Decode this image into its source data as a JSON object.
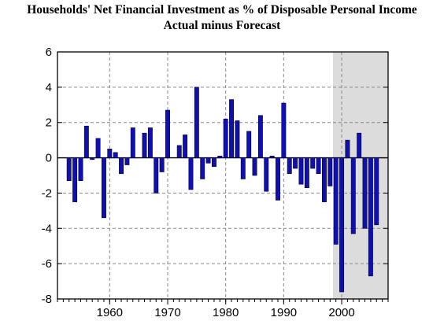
{
  "chart_data": {
    "type": "bar",
    "title": "Households' Net Financial Investment as % of Disposable Personal Income",
    "subtitle": "Actual minus Forecast",
    "xlabel": "",
    "ylabel": "",
    "xlim": [
      1951,
      2008
    ],
    "ylim": [
      -8,
      6
    ],
    "yticks": [
      -8,
      -6,
      -4,
      -2,
      0,
      2,
      4,
      6
    ],
    "xticks": [
      1960,
      1970,
      1980,
      1990,
      2000
    ],
    "grid": true,
    "legend": "none",
    "shaded_region": [
      1998.5,
      2008
    ],
    "colors": {
      "bar_fill": "#1010b0",
      "bar_edge": "#000033",
      "shade": "#dcdcdc",
      "grid": "#888888"
    },
    "x": [
      1953,
      1954,
      1955,
      1956,
      1957,
      1958,
      1959,
      1960,
      1961,
      1962,
      1963,
      1964,
      1965,
      1966,
      1967,
      1968,
      1969,
      1970,
      1971,
      1972,
      1973,
      1974,
      1975,
      1976,
      1977,
      1978,
      1979,
      1980,
      1981,
      1982,
      1983,
      1984,
      1985,
      1986,
      1987,
      1988,
      1989,
      1990,
      1991,
      1992,
      1993,
      1994,
      1995,
      1996,
      1997,
      1998,
      1999,
      2000,
      2001,
      2002,
      2003,
      2004,
      2005,
      2006
    ],
    "values": [
      -1.3,
      -2.5,
      -1.3,
      1.8,
      -0.1,
      1.1,
      -3.4,
      0.5,
      0.3,
      -0.9,
      -0.4,
      1.7,
      0.0,
      1.4,
      1.7,
      -2.0,
      -0.8,
      2.7,
      0.0,
      0.7,
      1.3,
      -1.8,
      4.0,
      -1.2,
      -0.3,
      -0.5,
      0.1,
      2.2,
      3.3,
      2.1,
      -1.2,
      1.5,
      -1.0,
      2.4,
      -1.9,
      0.1,
      -2.4,
      3.1,
      -0.9,
      -0.6,
      -1.5,
      -1.7,
      -0.6,
      -0.9,
      -2.5,
      -1.6,
      -4.9,
      -7.6,
      1.0,
      -4.3,
      1.4,
      -4.0,
      -6.7,
      -3.8
    ]
  }
}
